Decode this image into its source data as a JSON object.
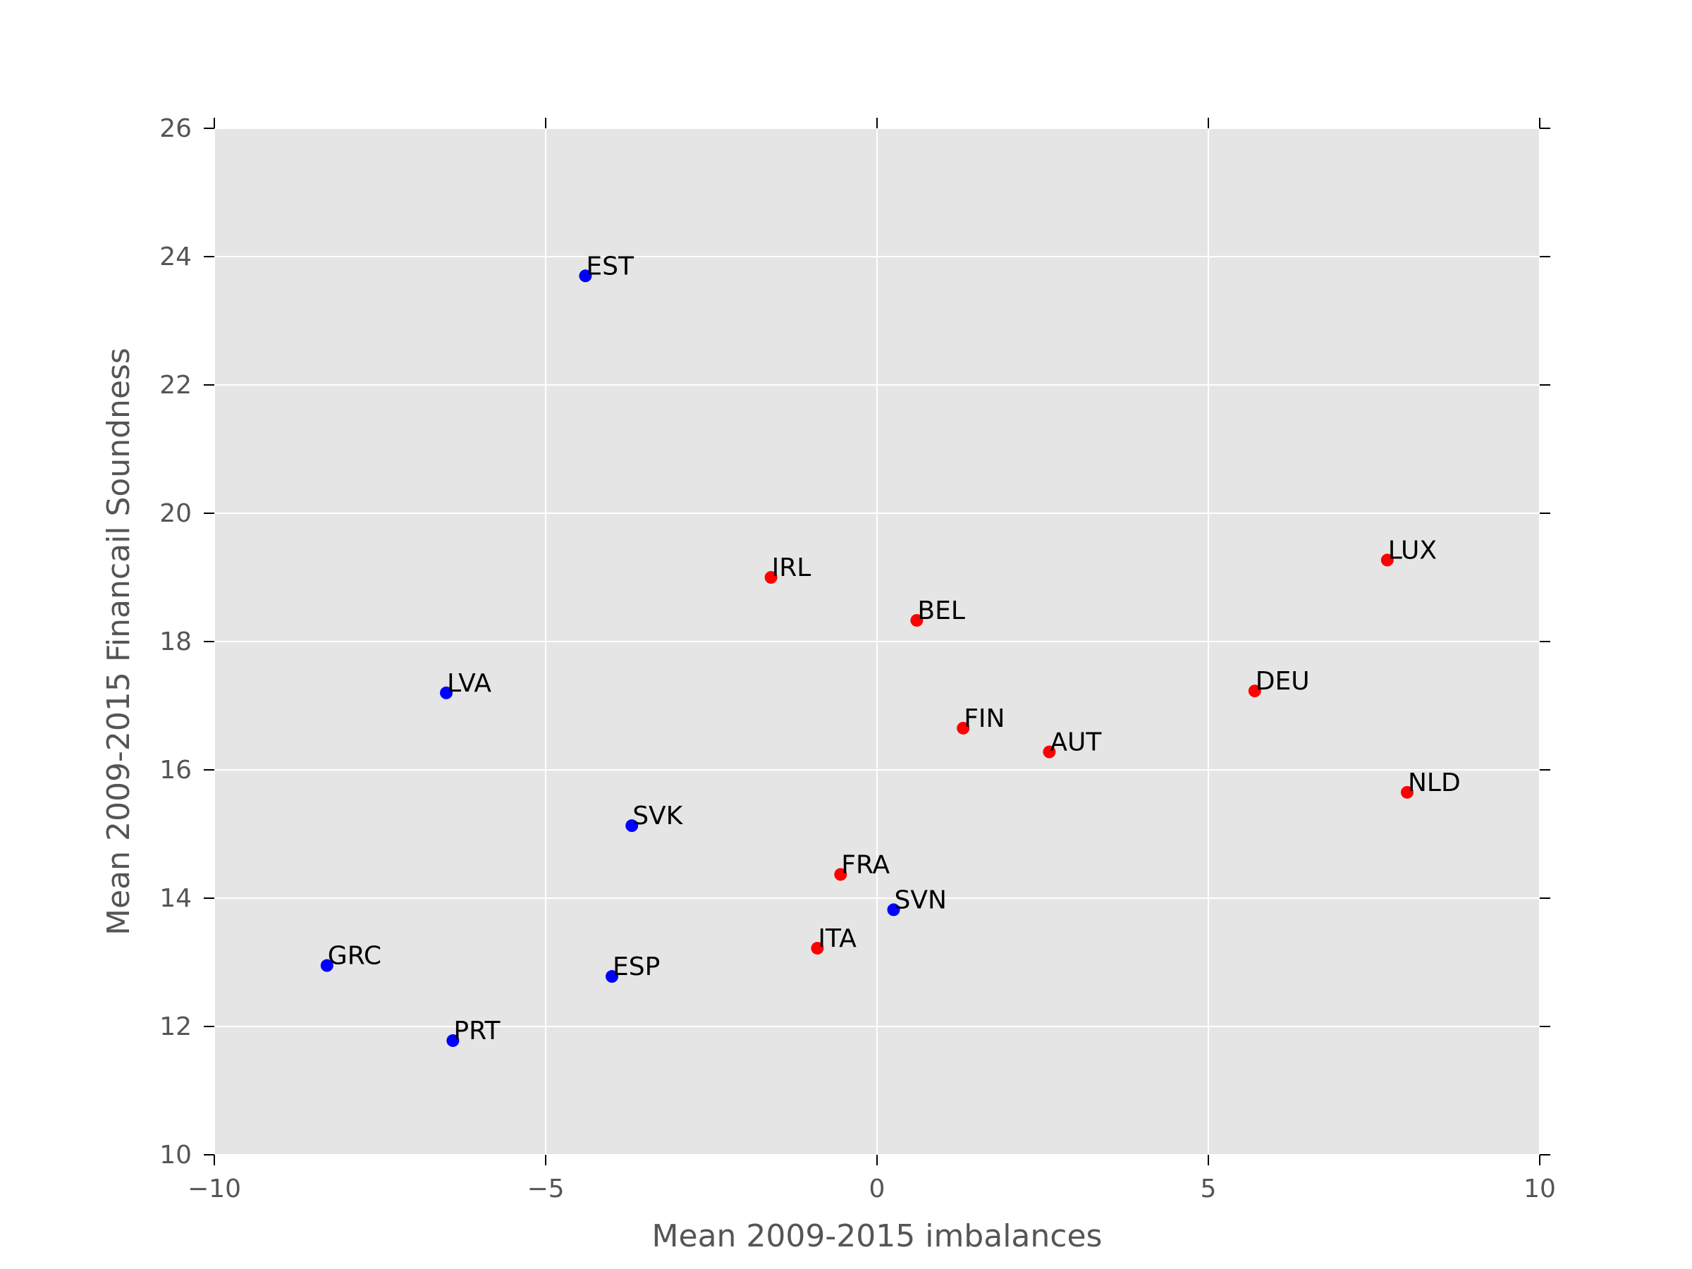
{
  "chart_data": {
    "type": "scatter",
    "title": "",
    "xlabel": "Mean 2009-2015 imbalances",
    "ylabel": "Mean 2009-2015 Financail Soundness",
    "xlim": [
      -10,
      10
    ],
    "ylim": [
      10,
      26
    ],
    "xticks": [
      -10,
      -5,
      0,
      5,
      10
    ],
    "yticks": [
      10,
      12,
      14,
      16,
      18,
      20,
      22,
      24,
      26
    ],
    "xtick_labels": [
      "−10",
      "−5",
      "0",
      "5",
      "10"
    ],
    "ytick_labels": [
      "10",
      "12",
      "14",
      "16",
      "18",
      "20",
      "22",
      "24",
      "26"
    ],
    "grid": true,
    "background": "#e5e5e5",
    "colors": {
      "blue": "#0000ff",
      "red": "#ff0000"
    },
    "points": [
      {
        "label": "EST",
        "x": -4.4,
        "y": 23.7,
        "color": "blue"
      },
      {
        "label": "IRL",
        "x": -1.6,
        "y": 19.0,
        "color": "red"
      },
      {
        "label": "LUX",
        "x": 7.7,
        "y": 19.27,
        "color": "red"
      },
      {
        "label": "BEL",
        "x": 0.6,
        "y": 18.33,
        "color": "red"
      },
      {
        "label": "LVA",
        "x": -6.5,
        "y": 17.2,
        "color": "blue"
      },
      {
        "label": "DEU",
        "x": 5.7,
        "y": 17.23,
        "color": "red"
      },
      {
        "label": "FIN",
        "x": 1.3,
        "y": 16.65,
        "color": "red"
      },
      {
        "label": "AUT",
        "x": 2.6,
        "y": 16.28,
        "color": "red"
      },
      {
        "label": "NLD",
        "x": 8.0,
        "y": 15.65,
        "color": "red"
      },
      {
        "label": "SVK",
        "x": -3.7,
        "y": 15.13,
        "color": "blue"
      },
      {
        "label": "FRA",
        "x": -0.55,
        "y": 14.37,
        "color": "red"
      },
      {
        "label": "SVN",
        "x": 0.25,
        "y": 13.82,
        "color": "blue"
      },
      {
        "label": "ITA",
        "x": -0.9,
        "y": 13.22,
        "color": "red"
      },
      {
        "label": "GRC",
        "x": -8.3,
        "y": 12.95,
        "color": "blue"
      },
      {
        "label": "ESP",
        "x": -4.0,
        "y": 12.78,
        "color": "blue"
      },
      {
        "label": "PRT",
        "x": -6.4,
        "y": 11.78,
        "color": "blue"
      }
    ]
  }
}
